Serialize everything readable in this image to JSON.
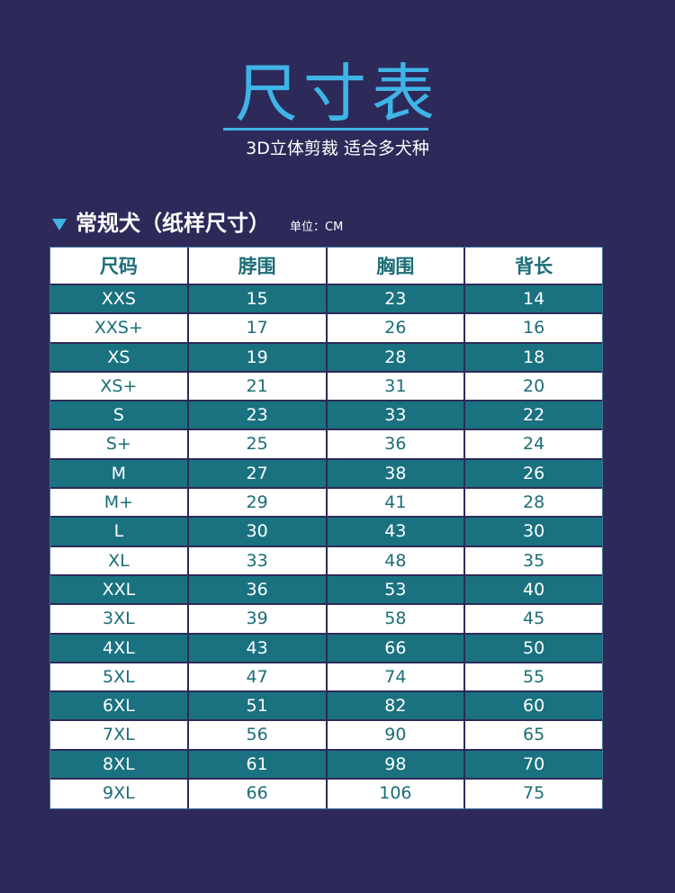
{
  "title": "尺寸表",
  "subtitle": "3D立体剪裁  适合多犬种",
  "section": {
    "title": "常规犬（纸样尺寸）",
    "unit": "单位：CM"
  },
  "table": {
    "headers": [
      "尺码",
      "脖围",
      "胸围",
      "背长"
    ],
    "rows": [
      [
        "XXS",
        "15",
        "23",
        "14"
      ],
      [
        "XXS+",
        "17",
        "26",
        "16"
      ],
      [
        "XS",
        "19",
        "28",
        "18"
      ],
      [
        "XS+",
        "21",
        "31",
        "20"
      ],
      [
        "S",
        "23",
        "33",
        "22"
      ],
      [
        "S+",
        "25",
        "36",
        "24"
      ],
      [
        "M",
        "27",
        "38",
        "26"
      ],
      [
        "M+",
        "29",
        "41",
        "28"
      ],
      [
        "L",
        "30",
        "43",
        "30"
      ],
      [
        "XL",
        "33",
        "48",
        "35"
      ],
      [
        "XXL",
        "36",
        "53",
        "40"
      ],
      [
        "3XL",
        "39",
        "58",
        "45"
      ],
      [
        "4XL",
        "43",
        "66",
        "50"
      ],
      [
        "5XL",
        "47",
        "74",
        "55"
      ],
      [
        "6XL",
        "51",
        "82",
        "60"
      ],
      [
        "7XL",
        "56",
        "90",
        "65"
      ],
      [
        "8XL",
        "61",
        "98",
        "70"
      ],
      [
        "9XL",
        "66",
        "106",
        "75"
      ]
    ]
  },
  "colors": {
    "background": "#2d2a5a",
    "accent": "#3fb4e6",
    "teal": "#1a7280"
  }
}
